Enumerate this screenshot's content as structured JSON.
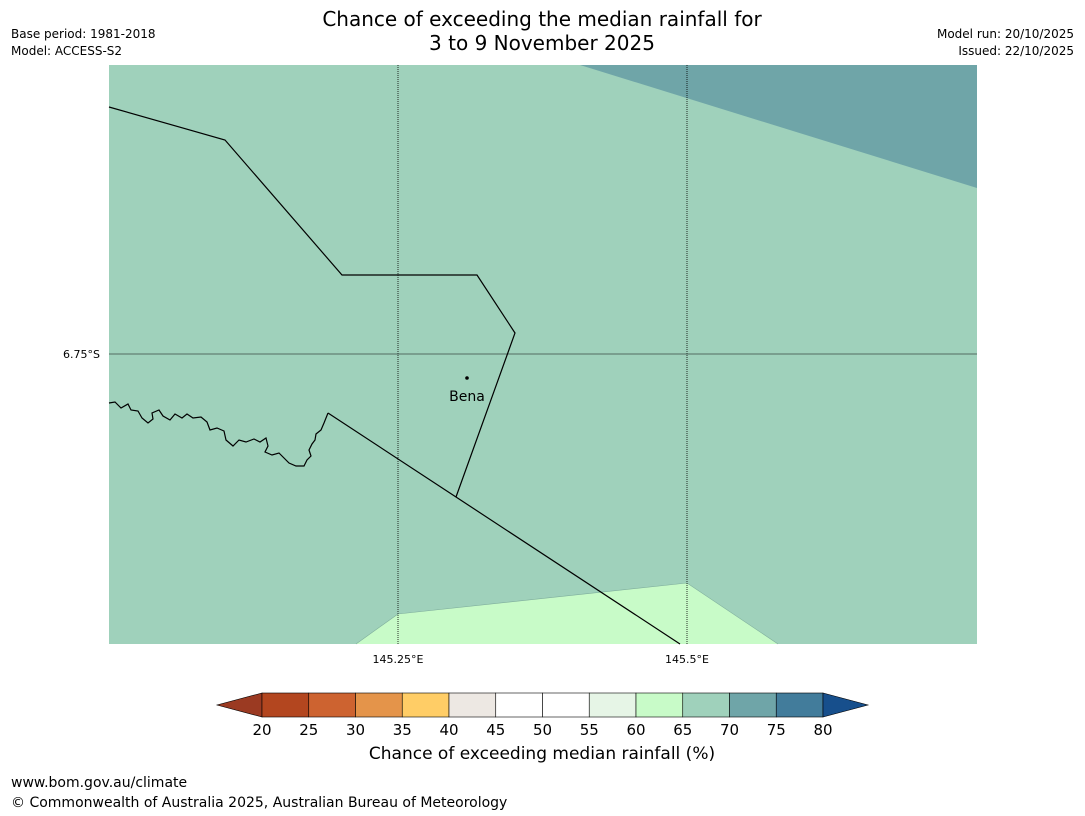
{
  "title": {
    "line1": "Chance of exceeding the median rainfall for",
    "line2": "3 to 9 November 2025"
  },
  "meta": {
    "base_period": "Base period: 1981-2018",
    "model": "Model: ACCESS-S2",
    "model_run": "Model run: 20/10/2025",
    "issued": "Issued: 22/10/2025"
  },
  "map": {
    "place_label": "Bena",
    "lat_label": "6.75°S",
    "lon_labels": [
      "145.25°E",
      "145.5°E"
    ],
    "colors": {
      "band_65_70": "#9fd1bb",
      "band_70_75": "#6fa5a8",
      "band_60_65": "#c8fbc8"
    }
  },
  "colorbar": {
    "ticks": [
      "20",
      "25",
      "30",
      "35",
      "40",
      "45",
      "50",
      "55",
      "60",
      "65",
      "70",
      "75",
      "80"
    ],
    "colors": [
      "#9b3a22",
      "#b3461f",
      "#cd6330",
      "#e4944a",
      "#ffcd66",
      "#ede8e3",
      "#ffffff",
      "#ffffff",
      "#e6f5e6",
      "#c8fbc8",
      "#9fd1bb",
      "#6fa5a8",
      "#427c9b",
      "#174f8c"
    ],
    "label": "Chance of exceeding median rainfall (%)"
  },
  "footer": {
    "url": "www.bom.gov.au/climate",
    "copyright": "© Commonwealth of Australia 2025, Australian Bureau of Meteorology"
  }
}
